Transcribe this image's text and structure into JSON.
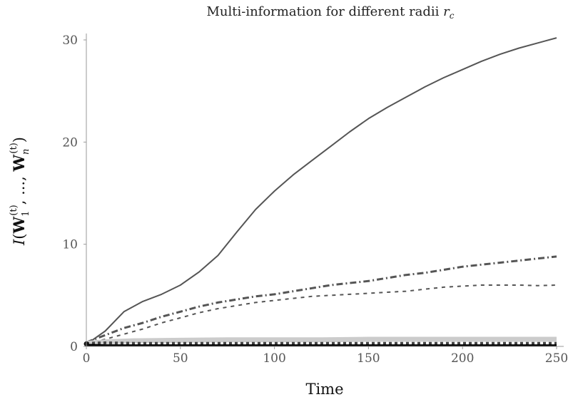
{
  "chart_data": {
    "type": "line",
    "title": "Multi-information for different radii r_c",
    "xlabel": "Time",
    "ylabel": "I(W_1^(t), ..., W_n^(t))",
    "xlim": [
      0,
      250
    ],
    "ylim": [
      0,
      30
    ],
    "xticks": [
      0,
      50,
      100,
      150,
      200,
      250
    ],
    "yticks": [
      0,
      10,
      20,
      30
    ],
    "grid": false,
    "legend": "none",
    "series": [
      {
        "style": "solid",
        "color": "#555555",
        "x": [
          0,
          10,
          20,
          30,
          40,
          50,
          60,
          70,
          80,
          90,
          100,
          110,
          120,
          130,
          140,
          150,
          160,
          170,
          180,
          190,
          200,
          210,
          220,
          230,
          240,
          250
        ],
        "y": [
          0.2,
          1.5,
          3.4,
          4.4,
          5.1,
          6.0,
          7.3,
          8.9,
          11.2,
          13.4,
          15.2,
          16.8,
          18.2,
          19.6,
          21.0,
          22.3,
          23.4,
          24.4,
          25.4,
          26.3,
          27.1,
          27.9,
          28.6,
          29.2,
          29.7,
          30.2
        ]
      },
      {
        "style": "dash-dot",
        "color": "#555555",
        "x": [
          0,
          10,
          20,
          30,
          40,
          50,
          60,
          70,
          80,
          90,
          100,
          110,
          120,
          130,
          140,
          150,
          160,
          170,
          180,
          190,
          200,
          210,
          220,
          230,
          240,
          250
        ],
        "y": [
          0.4,
          1.1,
          1.8,
          2.3,
          2.9,
          3.4,
          3.9,
          4.3,
          4.6,
          4.9,
          5.1,
          5.4,
          5.7,
          6.0,
          6.2,
          6.4,
          6.7,
          7.0,
          7.2,
          7.5,
          7.8,
          8.0,
          8.2,
          8.4,
          8.6,
          8.8
        ]
      },
      {
        "style": "dashed",
        "color": "#555555",
        "x": [
          0,
          10,
          20,
          30,
          40,
          50,
          60,
          70,
          80,
          90,
          100,
          110,
          120,
          130,
          140,
          150,
          160,
          170,
          180,
          190,
          200,
          210,
          220,
          230,
          240,
          250
        ],
        "y": [
          0.3,
          0.7,
          1.2,
          1.7,
          2.3,
          2.8,
          3.3,
          3.7,
          4.0,
          4.3,
          4.5,
          4.7,
          4.9,
          5.0,
          5.1,
          5.2,
          5.3,
          5.4,
          5.6,
          5.8,
          5.9,
          6.0,
          6.0,
          6.0,
          5.95,
          6.0
        ]
      },
      {
        "style": "thick-light",
        "color": "#cccccc",
        "x": [
          0,
          10,
          25,
          50,
          75,
          100,
          125,
          150,
          175,
          200,
          225,
          250
        ],
        "y": [
          0.3,
          0.45,
          0.55,
          0.6,
          0.65,
          0.65,
          0.65,
          0.7,
          0.7,
          0.7,
          0.7,
          0.7
        ]
      },
      {
        "style": "dotted-square",
        "color": "#444444",
        "x": [
          0,
          10,
          25,
          50,
          75,
          100,
          125,
          150,
          175,
          200,
          225,
          250
        ],
        "y": [
          0.3,
          0.35,
          0.3,
          0.3,
          0.3,
          0.3,
          0.3,
          0.3,
          0.3,
          0.3,
          0.3,
          0.3
        ]
      },
      {
        "style": "solid-thick",
        "color": "#000000",
        "x": [
          0,
          10,
          25,
          50,
          75,
          100,
          125,
          150,
          175,
          200,
          225,
          250
        ],
        "y": [
          0.15,
          0.1,
          0.1,
          0.1,
          0.1,
          0.1,
          0.1,
          0.1,
          0.1,
          0.1,
          0.1,
          0.1
        ]
      }
    ]
  }
}
